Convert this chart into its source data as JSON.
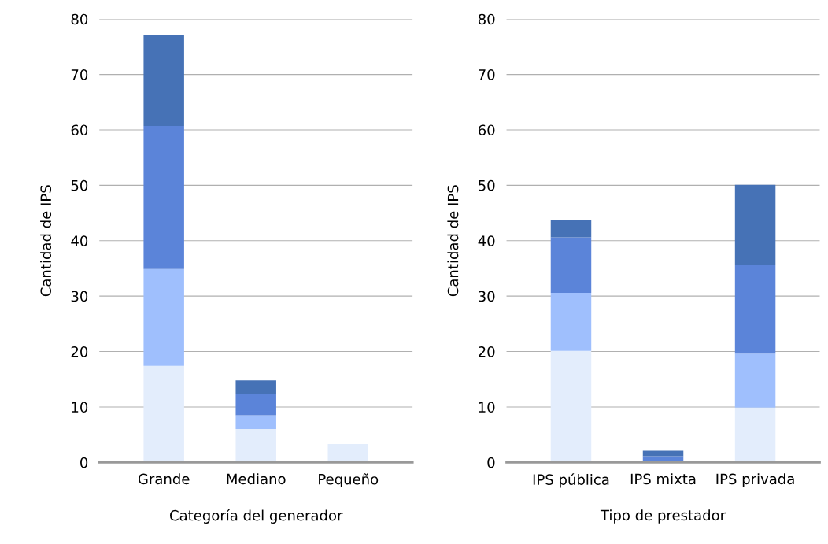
{
  "chart_data": [
    {
      "type": "bar",
      "stacked": true,
      "xlabel": "Categoría del generador",
      "ylabel": "Cantidad de IPS",
      "categories": [
        "Grande",
        "Mediano",
        "Pequeño"
      ],
      "ylim": [
        0,
        80
      ],
      "yticks": [
        0,
        10,
        20,
        30,
        40,
        50,
        60,
        70,
        80
      ],
      "grid": "y",
      "series": [
        {
          "color": "#e3edfc",
          "values": [
            17.4,
            6.0,
            3.3
          ]
        },
        {
          "color": "#9fbffd",
          "values": [
            17.5,
            2.5,
            0
          ]
        },
        {
          "color": "#5b84d9",
          "values": [
            25.8,
            3.8,
            0
          ]
        },
        {
          "color": "#4672b6",
          "values": [
            16.5,
            2.5,
            0
          ]
        }
      ]
    },
    {
      "type": "bar",
      "stacked": true,
      "xlabel": "Tipo de prestador",
      "ylabel": "Cantidad de IPS",
      "categories": [
        "IPS pública",
        "IPS mixta",
        "IPS privada"
      ],
      "ylim": [
        0,
        80
      ],
      "yticks": [
        0,
        10,
        20,
        30,
        40,
        50,
        60,
        70,
        80
      ],
      "grid": "y",
      "series": [
        {
          "color": "#e3edfc",
          "values": [
            20.1,
            0,
            9.9
          ]
        },
        {
          "color": "#9fbffd",
          "values": [
            10.5,
            0,
            9.7
          ]
        },
        {
          "color": "#5b84d9",
          "values": [
            10.0,
            1.1,
            16.0
          ]
        },
        {
          "color": "#4672b6",
          "values": [
            3.1,
            1.0,
            14.5
          ]
        }
      ]
    }
  ]
}
